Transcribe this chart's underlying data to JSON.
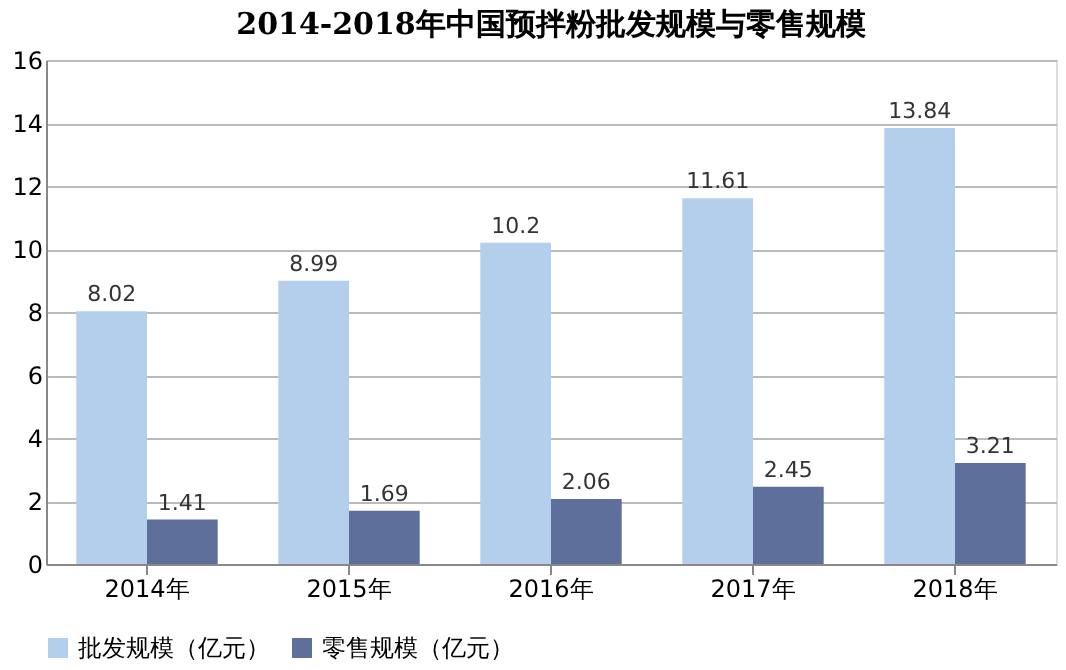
{
  "chart_data": {
    "type": "bar",
    "title": "2014-2018年中国预拌粉批发规模与零售规模",
    "categories": [
      "2014年",
      "2015年",
      "2016年",
      "2017年",
      "2018年"
    ],
    "series": [
      {
        "name": "批发规模（亿元）",
        "color": "#b4cfeb",
        "values": [
          8.02,
          8.99,
          10.2,
          11.61,
          13.84
        ]
      },
      {
        "name": "零售规模（亿元）",
        "color": "#5f6f9b",
        "values": [
          1.41,
          1.69,
          2.06,
          2.45,
          3.21
        ]
      }
    ],
    "ylim": [
      0,
      16
    ],
    "yticks": [
      0,
      2,
      4,
      6,
      8,
      10,
      12,
      14,
      16
    ],
    "grid": "y",
    "legend": "bottom",
    "data_labels": true
  }
}
